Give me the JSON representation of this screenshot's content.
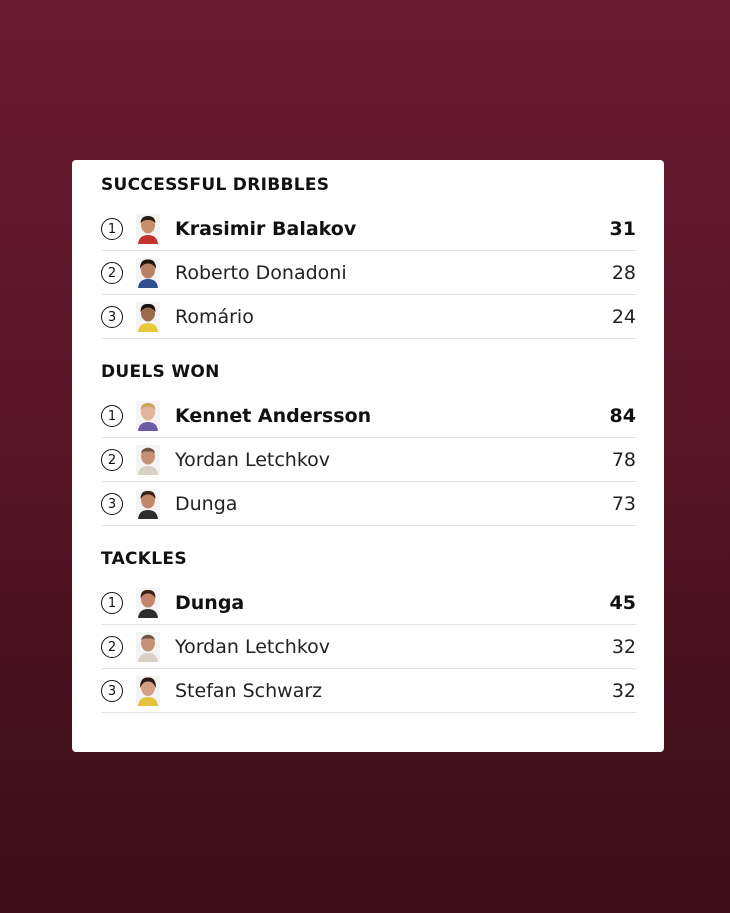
{
  "sections": [
    {
      "title": "SUCCESSFUL DRIBBLES",
      "rows": [
        {
          "rank": "1",
          "name": "Krasimir Balakov",
          "value": "31"
        },
        {
          "rank": "2",
          "name": "Roberto Donadoni",
          "value": "28"
        },
        {
          "rank": "3",
          "name": "Romário",
          "value": "24"
        }
      ]
    },
    {
      "title": "DUELS WON",
      "rows": [
        {
          "rank": "1",
          "name": "Kennet Andersson",
          "value": "84"
        },
        {
          "rank": "2",
          "name": "Yordan Letchkov",
          "value": "78"
        },
        {
          "rank": "3",
          "name": "Dunga",
          "value": "73"
        }
      ]
    },
    {
      "title": "TACKLES",
      "rows": [
        {
          "rank": "1",
          "name": "Dunga",
          "value": "45"
        },
        {
          "rank": "2",
          "name": "Yordan Letchkov",
          "value": "32"
        },
        {
          "rank": "3",
          "name": "Stefan Schwarz",
          "value": "32"
        }
      ]
    }
  ],
  "colors": {
    "background_top": "#6b1a33",
    "background_bottom": "#3a0d19",
    "card": "#ffffff",
    "text": "#111111",
    "divider": "#e2e2e2"
  },
  "icons": [
    "player-avatar-icon"
  ]
}
